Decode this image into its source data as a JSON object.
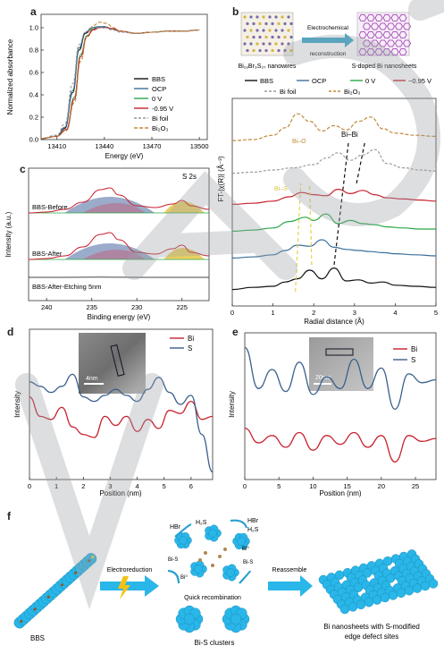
{
  "panels": {
    "a": {
      "label": "a",
      "ylabel": "Normalized absorbance",
      "xlabel": "Energy (eV)",
      "xticks": [
        "13410",
        "13440",
        "13470",
        "13500"
      ],
      "yticks": [
        "0.0",
        "0.2",
        "0.4",
        "0.6",
        "0.8",
        "1.0"
      ],
      "legend": [
        "BBS",
        "OCP",
        "0 V",
        "-0.95 V",
        "Bi foil",
        "Bi₂O₃"
      ]
    },
    "b": {
      "label": "b",
      "left_caption": "Bi₁₉Br₃S₂₇ nanowires",
      "right_caption": "S-doped Bi nanosheets",
      "arrow_text_1": "Electrochemical",
      "arrow_text_2": "reconstruction",
      "legend_row1": [
        "BBS",
        "OCP",
        "0 V",
        "−0.95 V"
      ],
      "legend_row2": [
        "Bi foil",
        "Bi₂O₃"
      ],
      "ylabel": "FT-|χ(R)| (Å⁻³)",
      "xlabel": "Radial distance (Å)",
      "xticks": [
        "0",
        "1",
        "2",
        "3",
        "4",
        "5"
      ],
      "ann_bibi": "Bi–Bi",
      "ann_bio": "Bi–O",
      "ann_bis": "Bi–S"
    },
    "c": {
      "label": "c",
      "tag": "S 2s",
      "ylabel": "Intensity (a.u.)",
      "xlabel": "Binding energy (eV)",
      "xticks": [
        "240",
        "235",
        "230",
        "225"
      ],
      "trace_labels": [
        "BBS-Before",
        "BBS-After",
        "BBS-After-Etching 5nm"
      ]
    },
    "d": {
      "label": "d",
      "ylabel": "Intensity",
      "xlabel": "Position (nm)",
      "xticks": [
        "0",
        "1",
        "2",
        "3",
        "4",
        "5",
        "6"
      ],
      "legend": [
        "Bi",
        "S"
      ],
      "scalebar": "4nm"
    },
    "e": {
      "label": "e",
      "ylabel": "Intensity",
      "xlabel": "Position (nm)",
      "xticks": [
        "0",
        "5",
        "10",
        "15",
        "20",
        "25"
      ],
      "legend": [
        "Bi",
        "S"
      ],
      "scalebar": "20nm"
    },
    "f": {
      "label": "f",
      "bbs_label": "BBS",
      "step1": "Electroreduction",
      "step2": "Reassemble",
      "hbr1": "HBr",
      "h2s1": "H₂S",
      "hbr2": "HBr",
      "h2s2": "H₂S",
      "bis1": "Bi-S",
      "bis2": "Bi-S",
      "bi0a": "Bi⁰",
      "bi0b": "Bi⁰",
      "quick": "Quick recombination",
      "clusters": "Bi-S clusters",
      "nanosheet_1": "Bi nanosheets with S-modified",
      "nanosheet_2": "edge defect sites"
    }
  },
  "colors": {
    "bbs": "#111111",
    "ocp": "#3a6f9a",
    "zero_v": "#2aa845",
    "neg095": "#c8202e",
    "bi_foil": "#9a9a9a",
    "bi2o3": "#c08a3a",
    "bi_line": "#c8202e",
    "s_line": "#3a5f8c",
    "cyan": "#29b6e8",
    "watermark": "#9aa0a6"
  },
  "chart_data": [
    {
      "type": "line",
      "panel": "a",
      "xlabel": "Energy (eV)",
      "ylabel": "Normalized absorbance",
      "xlim": [
        13400,
        13505
      ],
      "ylim": [
        0,
        1.12
      ],
      "series": [
        {
          "name": "BBS",
          "x": [
            13400,
            13410,
            13415,
            13420,
            13424,
            13428,
            13432,
            13436,
            13440,
            13445,
            13450,
            13460,
            13470,
            13480,
            13490,
            13500
          ],
          "y": [
            0.01,
            0.03,
            0.1,
            0.42,
            0.8,
            0.95,
            0.99,
            1.0,
            1.01,
            0.99,
            0.97,
            0.95,
            0.96,
            0.97,
            0.97,
            0.98
          ]
        },
        {
          "name": "OCP",
          "x": [
            13400,
            13410,
            13415,
            13420,
            13424,
            13428,
            13432,
            13436,
            13440,
            13445,
            13450,
            13460,
            13470,
            13480,
            13490,
            13500
          ],
          "y": [
            0.01,
            0.03,
            0.11,
            0.44,
            0.82,
            0.96,
            1.0,
            1.01,
            1.01,
            0.99,
            0.97,
            0.95,
            0.96,
            0.97,
            0.97,
            0.98
          ]
        },
        {
          "name": "0 V",
          "x": [
            13400,
            13410,
            13416,
            13421,
            13425,
            13429,
            13433,
            13437,
            13441,
            13446,
            13450,
            13460,
            13470,
            13480,
            13490,
            13500
          ],
          "y": [
            0.01,
            0.03,
            0.09,
            0.38,
            0.76,
            0.93,
            0.99,
            1.0,
            1.0,
            0.99,
            0.97,
            0.95,
            0.96,
            0.97,
            0.97,
            0.98
          ]
        },
        {
          "name": "-0.95 V",
          "x": [
            13400,
            13410,
            13416,
            13421,
            13425,
            13429,
            13433,
            13437,
            13441,
            13446,
            13450,
            13460,
            13470,
            13480,
            13490,
            13500
          ],
          "y": [
            0.01,
            0.03,
            0.09,
            0.36,
            0.74,
            0.92,
            0.98,
            1.0,
            1.0,
            0.99,
            0.97,
            0.95,
            0.96,
            0.97,
            0.97,
            0.98
          ]
        },
        {
          "name": "Bi foil",
          "x": [
            13400,
            13410,
            13415,
            13420,
            13424,
            13428,
            13432,
            13436,
            13440,
            13445,
            13450,
            13460,
            13470,
            13480,
            13490,
            13500
          ],
          "y": [
            0.01,
            0.04,
            0.14,
            0.5,
            0.85,
            0.96,
            0.99,
            1.0,
            1.0,
            0.98,
            0.96,
            0.95,
            0.96,
            0.97,
            0.97,
            0.98
          ]
        },
        {
          "name": "Bi₂O₃",
          "x": [
            13400,
            13410,
            13416,
            13421,
            13425,
            13429,
            13433,
            13437,
            13441,
            13446,
            13450,
            13460,
            13470,
            13480,
            13490,
            13500
          ],
          "y": [
            0.01,
            0.03,
            0.08,
            0.33,
            0.7,
            0.92,
            1.02,
            1.05,
            1.04,
            1.0,
            0.97,
            0.95,
            0.96,
            0.97,
            0.97,
            0.98
          ]
        }
      ]
    },
    {
      "type": "line",
      "panel": "b",
      "xlabel": "Radial distance (Å)",
      "ylabel": "FT-|χ(R)| (Å⁻³)",
      "xlim": [
        0,
        5
      ],
      "series": [
        {
          "name": "Bi₂O₃",
          "x": [
            0,
            0.5,
            1.0,
            1.3,
            1.6,
            1.9,
            2.2,
            2.5,
            2.8,
            3.1,
            3.4,
            3.7,
            4.0,
            4.5,
            5.0
          ],
          "y": [
            0.4,
            0.5,
            0.9,
            1.6,
            2.9,
            2.2,
            1.3,
            1.8,
            1.4,
            2.2,
            2.6,
            1.5,
            1.1,
            0.9,
            0.8
          ]
        },
        {
          "name": "Bi foil",
          "x": [
            0,
            0.5,
            1.0,
            1.5,
            2.0,
            2.3,
            2.6,
            2.9,
            3.2,
            3.5,
            3.8,
            4.2,
            4.6,
            5.0
          ],
          "y": [
            0.2,
            0.3,
            0.5,
            0.7,
            1.0,
            1.6,
            2.1,
            1.4,
            1.9,
            2.4,
            1.1,
            0.7,
            0.5,
            0.4
          ]
        },
        {
          "name": "−0.95 V",
          "x": [
            0,
            0.5,
            1.0,
            1.4,
            1.7,
            2.0,
            2.3,
            2.6,
            2.9,
            3.2,
            3.5,
            3.8,
            4.2,
            4.6,
            5.0
          ],
          "y": [
            0.3,
            0.4,
            0.6,
            1.0,
            1.4,
            1.2,
            1.1,
            1.7,
            1.3,
            1.6,
            1.2,
            0.9,
            0.8,
            0.7,
            0.6
          ]
        },
        {
          "name": "0 V",
          "x": [
            0,
            0.5,
            1.0,
            1.4,
            1.8,
            2.0,
            2.3,
            2.6,
            2.9,
            3.2,
            3.5,
            3.8,
            4.2,
            4.6,
            5.0
          ],
          "y": [
            0.3,
            0.4,
            0.6,
            1.2,
            1.6,
            1.3,
            1.9,
            1.0,
            1.3,
            1.0,
            0.9,
            0.7,
            0.6,
            0.5,
            0.5
          ]
        },
        {
          "name": "OCP",
          "x": [
            0,
            0.5,
            1.0,
            1.3,
            1.6,
            1.9,
            2.2,
            2.5,
            2.8,
            3.1,
            3.4,
            3.7,
            4.0,
            4.5,
            5.0
          ],
          "y": [
            0.3,
            0.4,
            0.6,
            1.0,
            1.5,
            1.4,
            2.0,
            1.3,
            1.1,
            1.0,
            0.9,
            0.8,
            0.7,
            0.6,
            0.5
          ]
        },
        {
          "name": "BBS",
          "x": [
            0,
            0.5,
            1.0,
            1.3,
            1.6,
            1.9,
            2.2,
            2.5,
            2.8,
            3.1,
            3.4,
            3.7,
            4.0,
            4.5,
            5.0
          ],
          "y": [
            0.2,
            0.4,
            0.5,
            0.9,
            1.2,
            2.0,
            1.2,
            2.2,
            1.0,
            1.1,
            0.8,
            0.9,
            0.6,
            0.5,
            0.4
          ]
        }
      ]
    },
    {
      "type": "line",
      "panel": "c",
      "xlabel": "Binding energy (eV)",
      "ylabel": "Intensity (a.u.)",
      "xlim": [
        242,
        222
      ],
      "series": [
        {
          "name": "BBS-Before",
          "x": [
            242,
            240,
            238,
            236,
            234,
            233,
            232,
            230,
            228,
            226,
            225,
            224,
            222
          ],
          "y": [
            1.0,
            1.05,
            1.2,
            1.6,
            2.3,
            2.4,
            2.0,
            1.4,
            1.3,
            1.5,
            1.7,
            1.4,
            1.2
          ]
        },
        {
          "name": "BBS-After",
          "x": [
            242,
            240,
            238,
            236,
            234,
            233,
            232,
            230,
            228,
            226,
            225,
            224,
            222
          ],
          "y": [
            1.0,
            1.05,
            1.2,
            1.7,
            2.4,
            2.5,
            2.1,
            1.4,
            1.3,
            1.6,
            1.8,
            1.4,
            1.2
          ]
        },
        {
          "name": "BBS-After-Etching 5nm",
          "x": [
            242,
            238,
            234,
            230,
            226,
            222
          ],
          "y": [
            1.0,
            1.0,
            1.02,
            1.0,
            1.0,
            1.0
          ]
        }
      ]
    },
    {
      "type": "line",
      "panel": "d",
      "xlabel": "Position (nm)",
      "ylabel": "Intensity",
      "xlim": [
        0,
        6.8
      ],
      "series": [
        {
          "name": "Bi",
          "x": [
            0,
            0.4,
            0.8,
            1.2,
            1.6,
            2.0,
            2.4,
            2.8,
            3.2,
            3.6,
            4.0,
            4.4,
            4.8,
            5.2,
            5.6,
            6.0,
            6.4,
            6.8
          ],
          "y": [
            0.55,
            0.42,
            0.4,
            0.48,
            0.35,
            0.3,
            0.28,
            0.42,
            0.36,
            0.42,
            0.32,
            0.4,
            0.34,
            0.46,
            0.44,
            0.52,
            0.4,
            0.42
          ]
        },
        {
          "name": "S",
          "x": [
            0,
            0.4,
            0.8,
            1.2,
            1.6,
            2.0,
            2.4,
            2.8,
            3.2,
            3.6,
            4.0,
            4.4,
            4.8,
            5.2,
            5.6,
            6.0,
            6.4,
            6.8
          ],
          "y": [
            0.65,
            0.62,
            0.58,
            0.62,
            0.7,
            0.55,
            0.52,
            0.56,
            0.6,
            0.56,
            0.52,
            0.6,
            0.68,
            0.58,
            0.5,
            0.56,
            0.3,
            0.05
          ]
        }
      ]
    },
    {
      "type": "line",
      "panel": "e",
      "xlabel": "Position (nm)",
      "ylabel": "Intensity",
      "xlim": [
        0,
        28
      ],
      "series": [
        {
          "name": "Bi",
          "x": [
            0,
            2,
            4,
            6,
            8,
            10,
            12,
            14,
            16,
            18,
            20,
            22,
            24,
            26,
            28
          ],
          "y": [
            0.35,
            0.25,
            0.3,
            0.22,
            0.32,
            0.2,
            0.3,
            0.24,
            0.32,
            0.22,
            0.3,
            0.12,
            0.3,
            0.26,
            0.28
          ]
        },
        {
          "name": "S",
          "x": [
            0,
            2,
            4,
            6,
            8,
            10,
            12,
            14,
            16,
            18,
            20,
            22,
            24,
            26,
            28
          ],
          "y": [
            0.9,
            0.62,
            0.75,
            0.6,
            0.8,
            0.58,
            0.7,
            0.62,
            0.82,
            0.62,
            0.76,
            0.48,
            0.72,
            0.66,
            0.68
          ]
        }
      ]
    }
  ]
}
